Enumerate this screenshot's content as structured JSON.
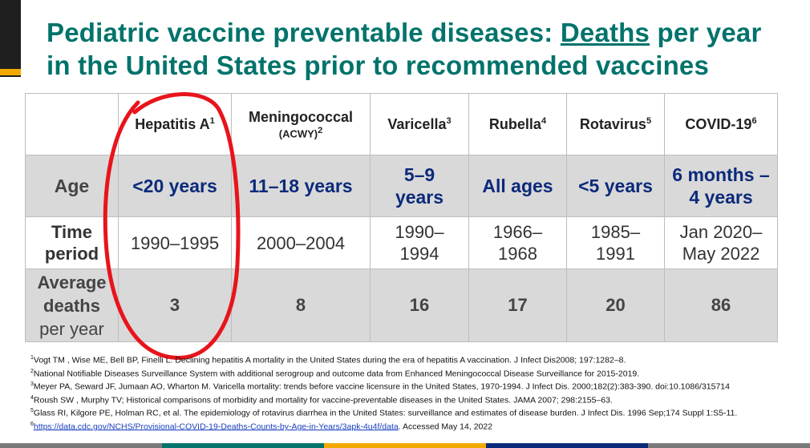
{
  "title": {
    "part1": "Pediatric vaccine preventable diseases: ",
    "underlined": "Deaths",
    "part2": " per year in the United States prior to recommended vaccines"
  },
  "table": {
    "headers": [
      {
        "name": "Hepatitis A",
        "sup": "1",
        "sub": ""
      },
      {
        "name": "Meningococcal",
        "sup": "2",
        "sub": "(ACWY)"
      },
      {
        "name": "Varicella",
        "sup": "3",
        "sub": ""
      },
      {
        "name": "Rubella",
        "sup": "4",
        "sub": ""
      },
      {
        "name": "Rotavirus",
        "sup": "5",
        "sub": ""
      },
      {
        "name": "COVID-19",
        "sup": "6",
        "sub": ""
      }
    ],
    "age": {
      "label": "Age",
      "values": [
        "<20 years",
        "11–18 years",
        "5–9 years",
        "All ages",
        "<5 years",
        "6 months – 4 years"
      ]
    },
    "period": {
      "label": "Time period",
      "values": [
        "1990–1995",
        "2000–2004",
        "1990–1994",
        "1966–1968",
        "1985–1991",
        "Jan 2020– May 2022"
      ]
    },
    "deaths": {
      "label_bold": "Average deaths",
      "label_light": "per year",
      "values": [
        "3",
        "8",
        "16",
        "17",
        "20",
        "86"
      ]
    }
  },
  "footnotes": {
    "f1_num": "1",
    "f1": "Vogt TM , Wise ME, Bell BP, Finelli L. Declining hepatitis A mortality in the United States during the era of hepatitis A vaccination. J Infect Dis2008; 197:1282–8.",
    "f2_num": "2",
    "f2": "National Notifiable Diseases Surveillance System with additional serogroup and outcome data from Enhanced Meningococcal Disease Surveillance for 2015-2019.",
    "f3_num": "3",
    "f3": "Meyer PA, Seward JF, Jumaan AO, Wharton M. Varicella mortality: trends before vaccine licensure in the United States, 1970-1994. J Infect Dis. 2000;182(2):383-390. doi:10.1086/315714",
    "f4_num": "4",
    "f4": "Roush SW , Murphy TV; Historical comparisons of morbidity and mortality for vaccine-preventable diseases in the United States. JAMA 2007; 298:2155–63.",
    "f5_num": "5",
    "f5": "Glass RI, Kilgore PE, Holman RC, et al. The epidemiology of rotavirus diarrhea in the United States: surveillance and estimates of disease burden. J Infect Dis. 1996 Sep;174 Suppl 1:S5-11.",
    "f6_num": "6",
    "f6_link": "https://data.cdc.gov/NCHS/Provisional-COVID-19-Deaths-Counts-by-Age-in-Years/3apk-4u4f/data",
    "f6_tail": ". Accessed May 14, 2022"
  },
  "colors": {
    "title": "#00736b",
    "age_values": "#0b2a7a",
    "shaded_row": "#d9d9d9",
    "annotation": "#e8141c",
    "bottom_bar": [
      "#7a7a7a",
      "#00736b",
      "#f2a900",
      "#0b2a7a",
      "#7a7a7a"
    ]
  },
  "annotation": {
    "shape": "hand-drawn red ellipse around Hepatitis A column"
  }
}
